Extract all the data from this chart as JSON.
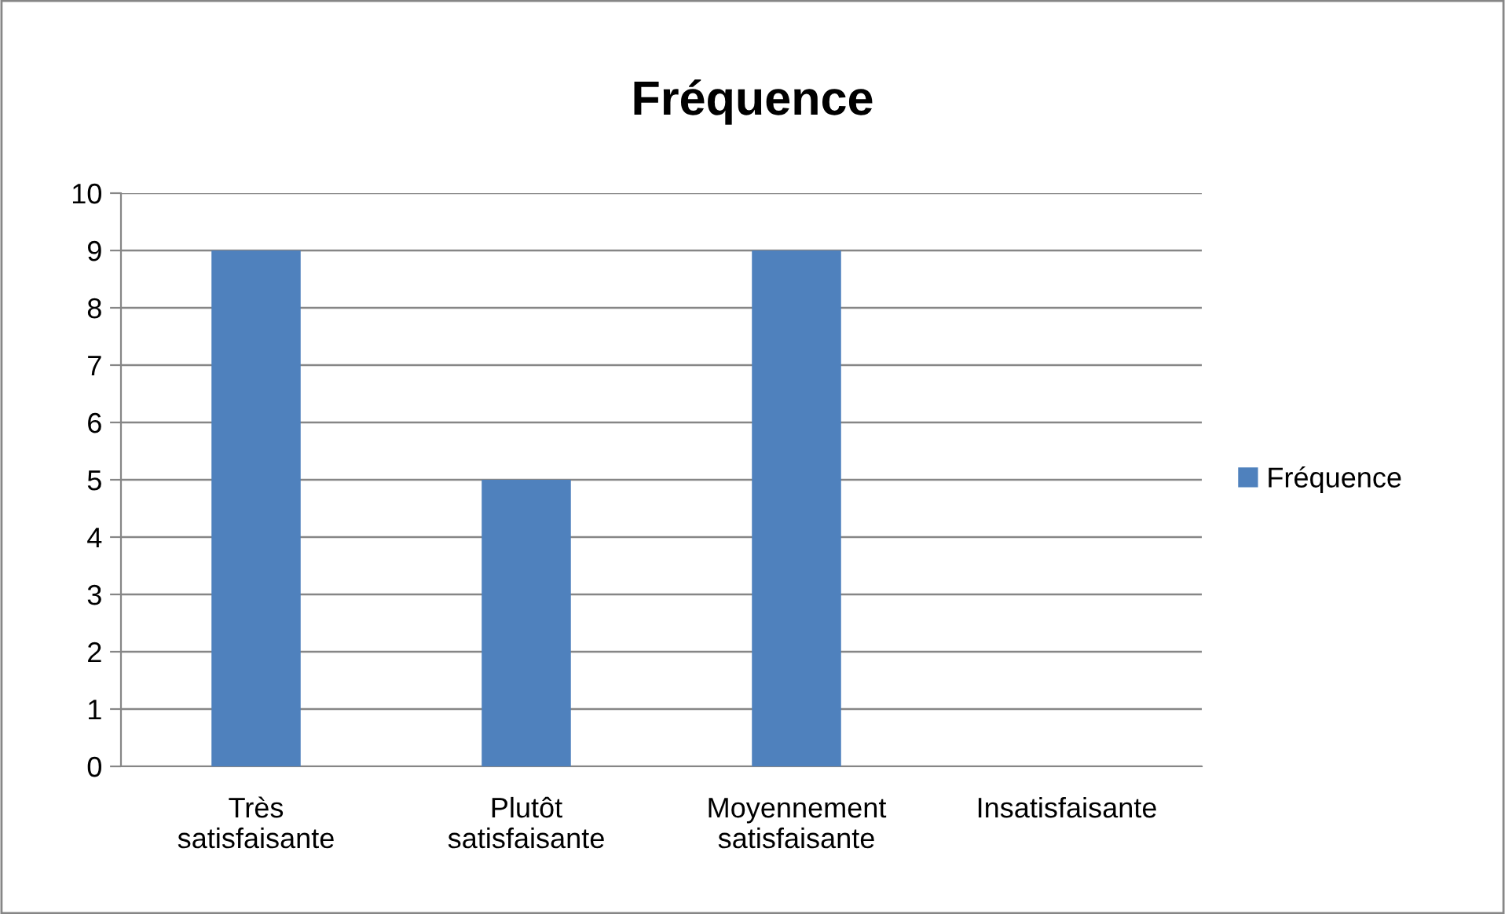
{
  "chart_data": {
    "type": "bar",
    "title": "Fréquence",
    "categories": [
      "Très\nsatisfaisante",
      "Plutôt\nsatisfaisante",
      "Moyennement\nsatisfaisante",
      "Insatisfaisante"
    ],
    "series": [
      {
        "name": "Fréquence",
        "color": "#4f81bd",
        "values": [
          9,
          5,
          9,
          0
        ]
      }
    ],
    "ylim": [
      0,
      10
    ],
    "yticks": [
      0,
      1,
      2,
      3,
      4,
      5,
      6,
      7,
      8,
      9,
      10
    ],
    "grid": "y",
    "legend": "right"
  }
}
